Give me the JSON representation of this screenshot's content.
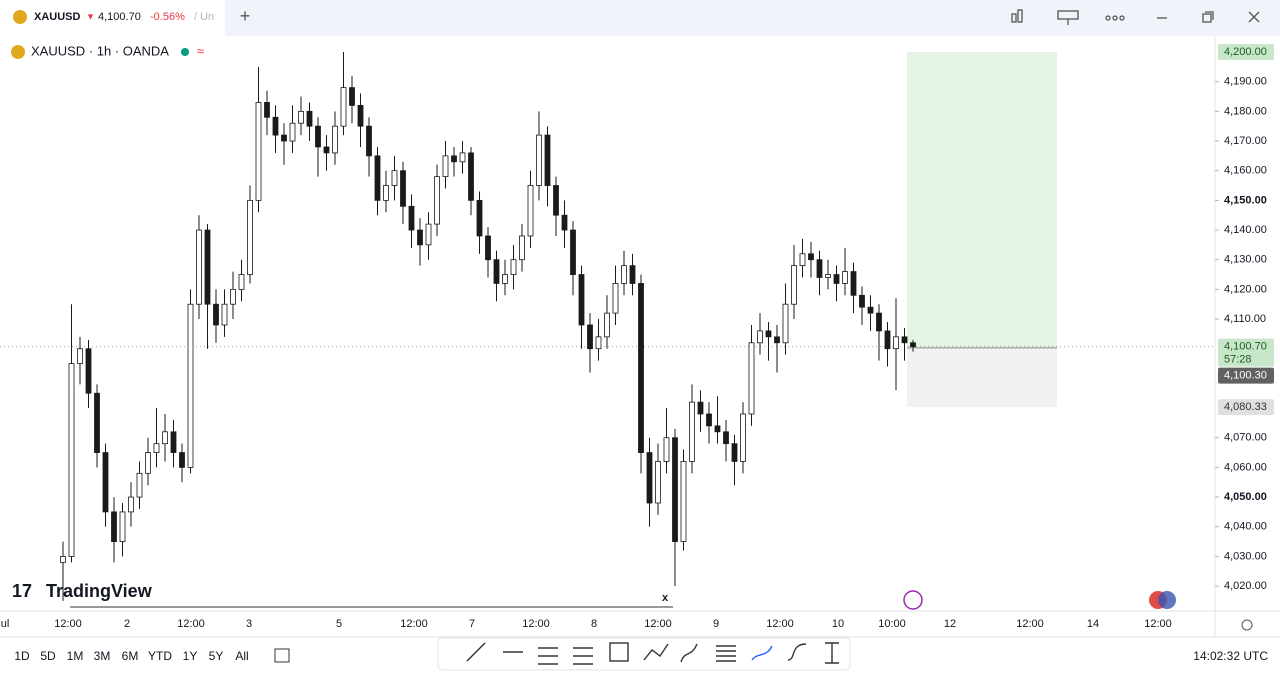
{
  "tab": {
    "symbol": "XAUUSD",
    "price": "4,100.70",
    "change": "-0.56%",
    "rest": "/ Un"
  },
  "legend": {
    "title": "XAUUSD · 1h · OANDA"
  },
  "logo": "TradingView",
  "close_mark": "x",
  "ranges": [
    "1D",
    "5D",
    "1M",
    "3M",
    "6M",
    "YTD",
    "1Y",
    "5Y",
    "All"
  ],
  "clock": "14:02:32 UTC",
  "chart_data": {
    "type": "candlestick",
    "ylim": [
      4011.6,
      4205.06
    ],
    "yticks": [
      {
        "value": 4190,
        "label": "4,190.00"
      },
      {
        "value": 4180,
        "label": "4,180.00"
      },
      {
        "value": 4170,
        "label": "4,170.00"
      },
      {
        "value": 4160,
        "label": "4,160.00"
      },
      {
        "value": 4150,
        "label": "4,150.00"
      },
      {
        "value": 4140,
        "label": "4,140.00"
      },
      {
        "value": 4130,
        "label": "4,130.00"
      },
      {
        "value": 4120,
        "label": "4,120.00"
      },
      {
        "value": 4110,
        "label": "4,110.00"
      },
      {
        "value": 4070,
        "label": "4,070.00"
      },
      {
        "value": 4060,
        "label": "4,060.00"
      },
      {
        "value": 4050,
        "label": "4,050.00"
      },
      {
        "value": 4040,
        "label": "4,040.00"
      },
      {
        "value": 4030,
        "label": "4,030.00"
      },
      {
        "value": 4020,
        "label": "4,020.00"
      }
    ],
    "x_labels": [
      "ul",
      "12:00",
      "2",
      "12:00",
      "3",
      "5",
      "12:00",
      "7",
      "12:00",
      "8",
      "12:00",
      "9",
      "12:00",
      "10",
      "10:00",
      "12",
      "12:00",
      "14",
      "12:00"
    ],
    "up_color": "#ffffff",
    "down_color": "#1a1a1a",
    "last": {
      "value": 4100.7,
      "label": "4,100.70",
      "countdown": "57:28"
    },
    "position": {
      "target": {
        "value": 4200,
        "label": "4,200.00"
      },
      "entry": {
        "value": 4100.3,
        "label": "4,100.30"
      },
      "stop": {
        "value": 4080.33,
        "label": "4,080.33"
      }
    },
    "candles": [
      [
        4028,
        4035,
        4015,
        4030
      ],
      [
        4030,
        4115,
        4028,
        4095
      ],
      [
        4095,
        4104,
        4088,
        4100
      ],
      [
        4100,
        4103,
        4080,
        4085
      ],
      [
        4085,
        4088,
        4060,
        4065
      ],
      [
        4065,
        4068,
        4040,
        4045
      ],
      [
        4045,
        4050,
        4028,
        4035
      ],
      [
        4035,
        4048,
        4030,
        4045
      ],
      [
        4045,
        4055,
        4040,
        4050
      ],
      [
        4050,
        4062,
        4046,
        4058
      ],
      [
        4058,
        4070,
        4054,
        4065
      ],
      [
        4065,
        4080,
        4060,
        4068
      ],
      [
        4068,
        4078,
        4062,
        4072
      ],
      [
        4072,
        4076,
        4060,
        4065
      ],
      [
        4065,
        4068,
        4055,
        4060
      ],
      [
        4060,
        4120,
        4058,
        4115
      ],
      [
        4115,
        4145,
        4110,
        4140
      ],
      [
        4140,
        4142,
        4100,
        4115
      ],
      [
        4115,
        4120,
        4102,
        4108
      ],
      [
        4108,
        4120,
        4104,
        4115
      ],
      [
        4115,
        4126,
        4110,
        4120
      ],
      [
        4120,
        4130,
        4116,
        4125
      ],
      [
        4125,
        4155,
        4122,
        4150
      ],
      [
        4150,
        4195,
        4146,
        4183
      ],
      [
        4183,
        4187,
        4172,
        4178
      ],
      [
        4178,
        4182,
        4166,
        4172
      ],
      [
        4172,
        4176,
        4162,
        4170
      ],
      [
        4170,
        4182,
        4166,
        4176
      ],
      [
        4176,
        4185,
        4172,
        4180
      ],
      [
        4180,
        4183,
        4170,
        4175
      ],
      [
        4175,
        4178,
        4158,
        4168
      ],
      [
        4168,
        4172,
        4160,
        4166
      ],
      [
        4166,
        4180,
        4162,
        4175
      ],
      [
        4175,
        4200,
        4172,
        4188
      ],
      [
        4188,
        4192,
        4176,
        4182
      ],
      [
        4182,
        4186,
        4168,
        4175
      ],
      [
        4175,
        4178,
        4158,
        4165
      ],
      [
        4165,
        4168,
        4145,
        4150
      ],
      [
        4150,
        4160,
        4146,
        4155
      ],
      [
        4155,
        4165,
        4150,
        4160
      ],
      [
        4160,
        4163,
        4142,
        4148
      ],
      [
        4148,
        4152,
        4134,
        4140
      ],
      [
        4140,
        4144,
        4128,
        4135
      ],
      [
        4135,
        4146,
        4130,
        4142
      ],
      [
        4142,
        4162,
        4138,
        4158
      ],
      [
        4158,
        4170,
        4154,
        4165
      ],
      [
        4165,
        4168,
        4158,
        4163
      ],
      [
        4163,
        4170,
        4159,
        4166
      ],
      [
        4166,
        4168,
        4145,
        4150
      ],
      [
        4150,
        4153,
        4132,
        4138
      ],
      [
        4138,
        4141,
        4124,
        4130
      ],
      [
        4130,
        4133,
        4116,
        4122
      ],
      [
        4122,
        4130,
        4118,
        4125
      ],
      [
        4125,
        4135,
        4120,
        4130
      ],
      [
        4130,
        4142,
        4126,
        4138
      ],
      [
        4138,
        4160,
        4134,
        4155
      ],
      [
        4155,
        4180,
        4150,
        4172
      ],
      [
        4172,
        4175,
        4148,
        4155
      ],
      [
        4155,
        4158,
        4138,
        4145
      ],
      [
        4145,
        4150,
        4134,
        4140
      ],
      [
        4140,
        4143,
        4118,
        4125
      ],
      [
        4125,
        4128,
        4100,
        4108
      ],
      [
        4108,
        4112,
        4092,
        4100
      ],
      [
        4100,
        4110,
        4096,
        4104
      ],
      [
        4104,
        4118,
        4100,
        4112
      ],
      [
        4112,
        4128,
        4108,
        4122
      ],
      [
        4122,
        4133,
        4118,
        4128
      ],
      [
        4128,
        4132,
        4118,
        4122
      ],
      [
        4122,
        4125,
        4058,
        4065
      ],
      [
        4065,
        4070,
        4040,
        4048
      ],
      [
        4048,
        4068,
        4044,
        4062
      ],
      [
        4062,
        4080,
        4058,
        4070
      ],
      [
        4070,
        4073,
        4020,
        4035
      ],
      [
        4035,
        4066,
        4032,
        4062
      ],
      [
        4062,
        4088,
        4058,
        4082
      ],
      [
        4082,
        4086,
        4072,
        4078
      ],
      [
        4078,
        4082,
        4068,
        4074
      ],
      [
        4074,
        4084,
        4068,
        4072
      ],
      [
        4072,
        4076,
        4062,
        4068
      ],
      [
        4068,
        4071,
        4054,
        4062
      ],
      [
        4062,
        4082,
        4058,
        4078
      ],
      [
        4078,
        4108,
        4074,
        4102
      ],
      [
        4102,
        4112,
        4098,
        4106
      ],
      [
        4106,
        4109,
        4096,
        4104
      ],
      [
        4104,
        4108,
        4092,
        4102
      ],
      [
        4102,
        4122,
        4098,
        4115
      ],
      [
        4115,
        4135,
        4110,
        4128
      ],
      [
        4128,
        4137,
        4124,
        4132
      ],
      [
        4132,
        4136,
        4124,
        4130
      ],
      [
        4130,
        4133,
        4118,
        4124
      ],
      [
        4124,
        4130,
        4120,
        4125
      ],
      [
        4125,
        4128,
        4116,
        4122
      ],
      [
        4122,
        4134,
        4118,
        4126
      ],
      [
        4126,
        4129,
        4112,
        4118
      ],
      [
        4118,
        4121,
        4108,
        4114
      ],
      [
        4114,
        4118,
        4106,
        4112
      ],
      [
        4112,
        4115,
        4096,
        4106
      ],
      [
        4106,
        4109,
        4094,
        4100
      ],
      [
        4100,
        4117,
        4086,
        4104
      ],
      [
        4104,
        4107,
        4096,
        4102
      ],
      [
        4102,
        4103,
        4099,
        4100.7
      ]
    ]
  }
}
